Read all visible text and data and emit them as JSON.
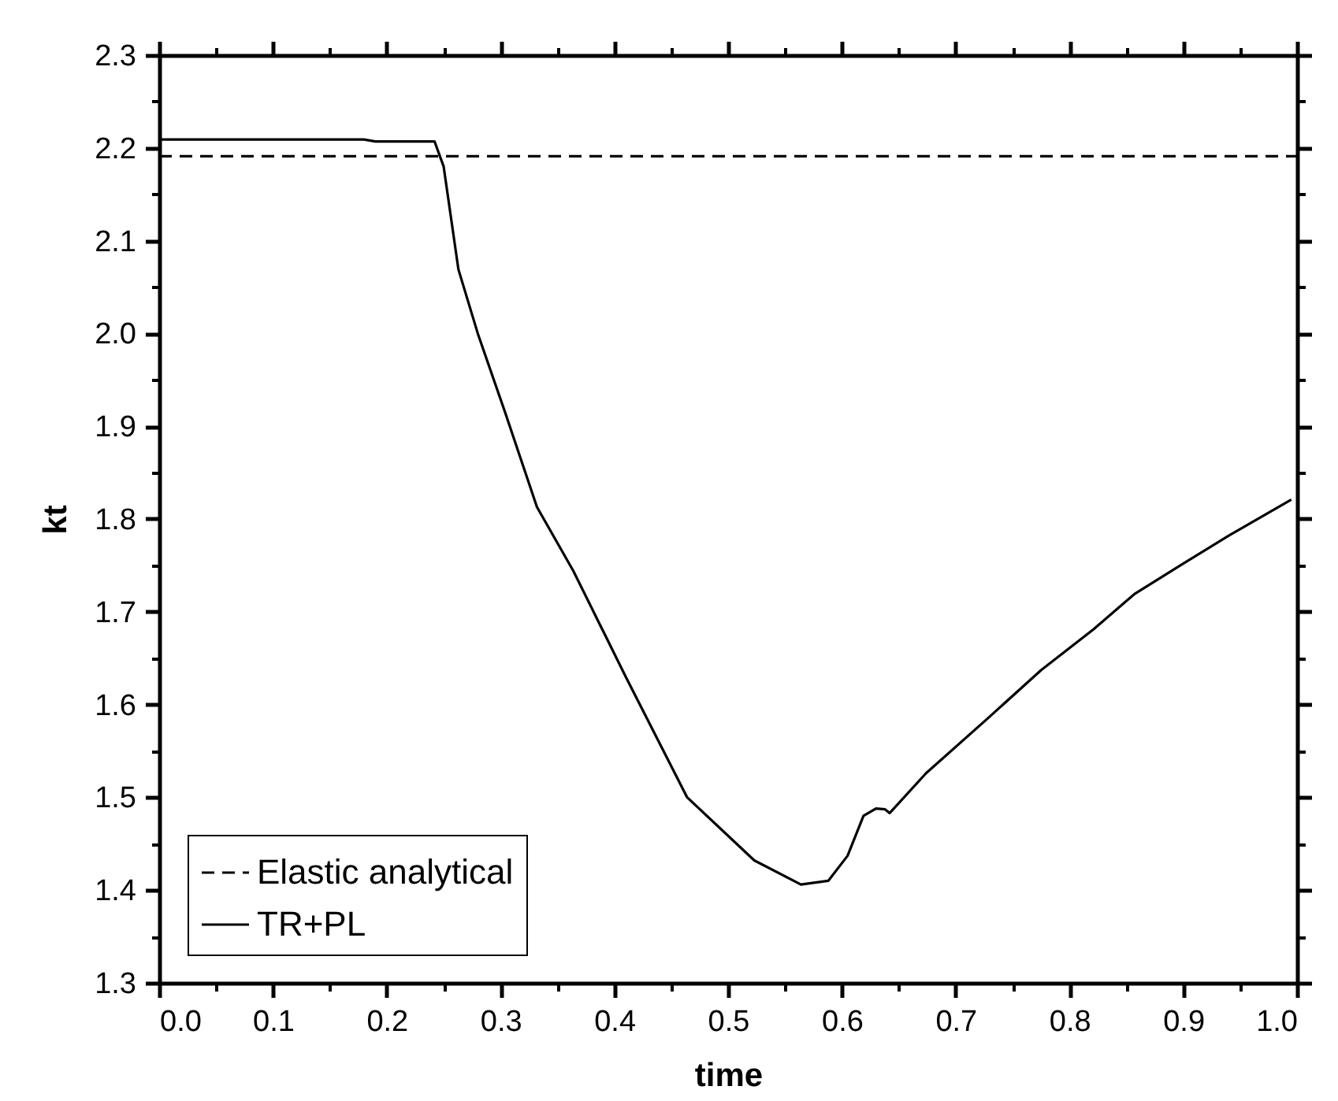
{
  "chart_data": {
    "type": "line",
    "xlabel": "time",
    "ylabel": "kt",
    "xlim": [
      0,
      1
    ],
    "ylim": [
      1.3,
      2.3
    ],
    "xticks": [
      {
        "value": 0,
        "label": "0.0"
      },
      0.1,
      0.2,
      0.3,
      0.4,
      0.5,
      0.6,
      0.7,
      0.8,
      0.9,
      {
        "value": 1,
        "label": "1.0"
      }
    ],
    "yticks": [
      1.3,
      1.4,
      1.5,
      1.6,
      1.7,
      1.8,
      1.9,
      {
        "value": 2,
        "label": "2.0"
      },
      2.1,
      2.2,
      2.3
    ],
    "legend": "bottom left",
    "grid": false,
    "series": [
      {
        "name": "Elastic analytical",
        "color": "#000000",
        "line_style": "dashed",
        "x": [
          0,
          1
        ],
        "values": [
          2.191,
          2.191
        ]
      },
      {
        "name": "TR+PL",
        "color": "#000000",
        "line_style": "solid",
        "x": [
          0,
          0.18,
          0.19,
          0.242,
          0.25,
          0.263,
          0.28,
          0.304,
          0.332,
          0.364,
          0.41,
          0.464,
          0.523,
          0.564,
          0.588,
          0.605,
          0.619,
          0.63,
          0.638,
          0.642,
          0.674,
          0.729,
          0.775,
          0.821,
          0.857,
          0.9,
          0.94,
          0.995
        ],
        "values": [
          2.209,
          2.209,
          2.207,
          2.207,
          2.18,
          2.069,
          2.0,
          1.915,
          1.813,
          1.744,
          1.63,
          1.5,
          1.432,
          1.406,
          1.41,
          1.437,
          1.48,
          1.488,
          1.487,
          1.483,
          1.526,
          1.586,
          1.637,
          1.681,
          1.719,
          1.752,
          1.782,
          1.821
        ]
      }
    ]
  }
}
